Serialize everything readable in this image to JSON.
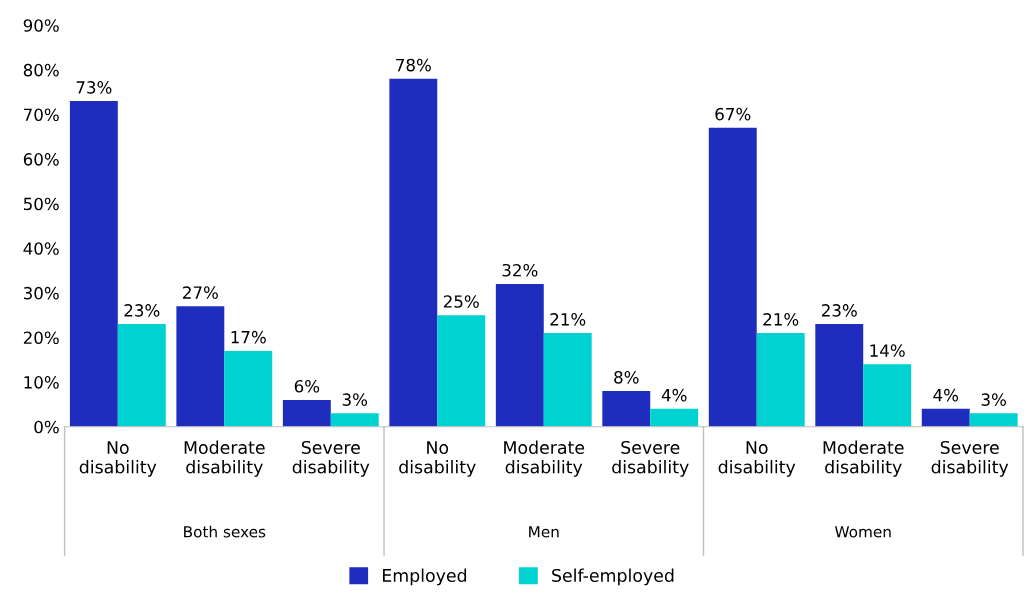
{
  "chart_data": {
    "type": "bar",
    "categories": [
      "No\ndisability",
      "Moderate\ndisability",
      "Severe\ndisability",
      "No\ndisability",
      "Moderate\ndisability",
      "Severe\ndisability",
      "No\ndisability",
      "Moderate\ndisability",
      "Severe\ndisability"
    ],
    "series": [
      {
        "name": "Employed",
        "color": "#1f2dbf",
        "values": [
          73,
          27,
          6,
          78,
          32,
          8,
          67,
          23,
          4
        ],
        "value_labels": [
          "73%",
          "27%",
          "6%",
          "78%",
          "32%",
          "8%",
          "67%",
          "23%",
          "4%"
        ]
      },
      {
        "name": "Self-employed",
        "color": "#00d1d1",
        "values": [
          23,
          17,
          3,
          25,
          21,
          4,
          21,
          14,
          3
        ],
        "value_labels": [
          "23%",
          "17%",
          "3%",
          "25%",
          "21%",
          "4%",
          "21%",
          "14%",
          "3%"
        ]
      }
    ],
    "annotations": [
      "Both sexes",
      "Men",
      "Women"
    ],
    "ylim": [
      0,
      90
    ],
    "yticks": [
      {
        "value": 0,
        "label": "0%"
      },
      {
        "value": 10,
        "label": "10%"
      },
      {
        "value": 20,
        "label": "20%"
      },
      {
        "value": 30,
        "label": "30%"
      },
      {
        "value": 40,
        "label": "40%"
      },
      {
        "value": 50,
        "label": "50%"
      },
      {
        "value": 60,
        "label": "60%"
      },
      {
        "value": 70,
        "label": "70%"
      },
      {
        "value": 80,
        "label": "80%"
      },
      {
        "value": 90,
        "label": "90%"
      }
    ],
    "grid": false,
    "legend": "bottom"
  }
}
